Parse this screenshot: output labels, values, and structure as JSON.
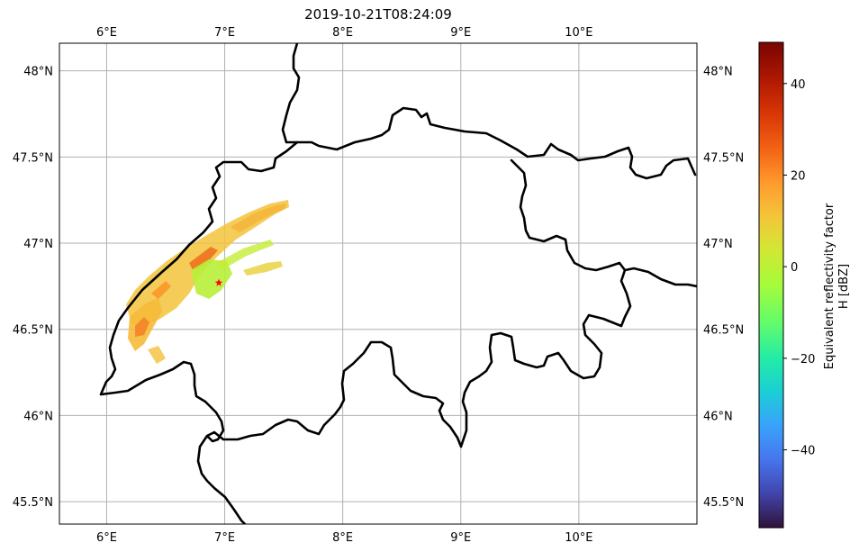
{
  "title": "2019-10-21T08:24:09",
  "colorbar": {
    "label_line1": "Equivalent reflectivity factor",
    "label_line2": "H [dBZ]",
    "vmin": -57,
    "vmax": 49,
    "ticks": [
      {
        "value": 40,
        "label": "40"
      },
      {
        "value": 20,
        "label": "20"
      },
      {
        "value": 0,
        "label": "0"
      },
      {
        "value": -20,
        "label": "−20"
      },
      {
        "value": -40,
        "label": "−40"
      }
    ]
  },
  "map": {
    "lon_range": [
      5.6,
      11.0
    ],
    "lat_range": [
      45.37,
      48.16
    ],
    "grid": true,
    "lon_ticks": [
      {
        "value": 6,
        "label": "6°E"
      },
      {
        "value": 7,
        "label": "7°E"
      },
      {
        "value": 8,
        "label": "8°E"
      },
      {
        "value": 9,
        "label": "9°E"
      },
      {
        "value": 10,
        "label": "10°E"
      }
    ],
    "lat_ticks": [
      {
        "value": 48.0,
        "label": "48°N"
      },
      {
        "value": 47.5,
        "label": "47.5°N"
      },
      {
        "value": 47.0,
        "label": "47°N"
      },
      {
        "value": 46.5,
        "label": "46.5°N"
      },
      {
        "value": 46.0,
        "label": "46°N"
      },
      {
        "value": 45.5,
        "label": "45.5°N"
      }
    ],
    "radar_site": {
      "lon": 6.95,
      "lat": 46.77,
      "color": "#ff0000",
      "icon": "star-icon"
    },
    "border_color": "#000000",
    "grid_color": "#b0b0b0"
  }
}
